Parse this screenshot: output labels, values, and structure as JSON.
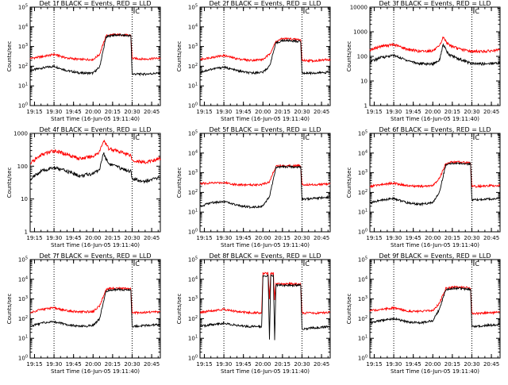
{
  "chart_data": [
    {
      "type": "line",
      "title": "Det 1f BLACK = Events, RED = LLD",
      "xlabel": "Start Time (16-Jun-05 19:11:40)",
      "ylabel": "Counts/sec",
      "yscale": "log",
      "ylim": [
        1,
        100000
      ],
      "y_tick_labels": [
        "10^0",
        "10^1",
        "10^2",
        "10^3",
        "10^4",
        "10^5"
      ],
      "x_tick_labels": [
        "19:15",
        "19:30",
        "19:45",
        "20:00",
        "20:15",
        "20:30",
        "20:45"
      ],
      "xlim": [
        "19:11:40",
        "20:51:40"
      ],
      "flag_label": "C",
      "flag_time": "20:31:30",
      "dotted_lines": [
        "19:30",
        "20:30"
      ],
      "series": [
        {
          "color": "#000000",
          "x": [
            "19:11:40",
            "19:20",
            "19:30",
            "19:40",
            "19:50",
            "20:00",
            "20:05",
            "20:10",
            "20:15",
            "20:20",
            "20:29",
            "20:30",
            "20:40",
            "20:51:40"
          ],
          "values": [
            60,
            80,
            100,
            60,
            45,
            45,
            90,
            3000,
            3800,
            3800,
            3500,
            40,
            40,
            45
          ]
        },
        {
          "color": "#ff0000",
          "x": [
            "19:11:40",
            "19:20",
            "19:30",
            "19:40",
            "19:50",
            "20:00",
            "20:05",
            "20:10",
            "20:15",
            "20:20",
            "20:29",
            "20:30",
            "20:40",
            "20:51:40"
          ],
          "values": [
            250,
            300,
            400,
            260,
            220,
            220,
            400,
            3500,
            4000,
            4000,
            3700,
            250,
            230,
            260
          ]
        }
      ]
    },
    {
      "type": "line",
      "title": "Det 2f BLACK = Events, RED = LLD",
      "xlabel": "Start Time (16-Jun-05 19:11:40)",
      "ylabel": "Counts/sec",
      "yscale": "log",
      "ylim": [
        1,
        100000
      ],
      "y_tick_labels": [
        "10^0",
        "10^1",
        "10^2",
        "10^3",
        "10^4",
        "10^5"
      ],
      "x_tick_labels": [
        "19:15",
        "19:30",
        "19:45",
        "20:00",
        "20:15",
        "20:30",
        "20:45"
      ],
      "xlim": [
        "19:11:40",
        "20:51:40"
      ],
      "flag_label": "C",
      "flag_time": "20:31:30",
      "dotted_lines": [
        "19:30",
        "20:30"
      ],
      "series": [
        {
          "color": "#000000",
          "x": [
            "19:11:40",
            "19:20",
            "19:30",
            "19:40",
            "19:50",
            "20:00",
            "20:05",
            "20:10",
            "20:15",
            "20:20",
            "20:29",
            "20:30",
            "20:40",
            "20:51:40"
          ],
          "values": [
            50,
            70,
            90,
            60,
            45,
            50,
            100,
            1500,
            2000,
            2000,
            1800,
            45,
            45,
            50
          ]
        },
        {
          "color": "#ff0000",
          "x": [
            "19:11:40",
            "19:20",
            "19:30",
            "19:40",
            "19:50",
            "20:00",
            "20:05",
            "20:10",
            "20:15",
            "20:20",
            "20:29",
            "20:30",
            "20:40",
            "20:51:40"
          ],
          "values": [
            220,
            280,
            350,
            240,
            200,
            220,
            400,
            1800,
            2500,
            2500,
            2200,
            200,
            190,
            220
          ]
        }
      ]
    },
    {
      "type": "line",
      "title": "Det 3f BLACK = Events, RED = LLD",
      "xlabel": "Start Time (16-Jun-05 19:11:40)",
      "ylabel": "Counts/sec",
      "yscale": "log",
      "ylim": [
        1,
        10000
      ],
      "y_tick_labels": [
        "1",
        "10",
        "100",
        "1000",
        "10000"
      ],
      "x_tick_labels": [
        "19:15",
        "19:30",
        "19:45",
        "20:00",
        "20:15",
        "20:30",
        "20:45"
      ],
      "xlim": [
        "19:11:40",
        "20:51:40"
      ],
      "flag_label": "C",
      "flag_time": "20:31:30",
      "dotted_lines": [
        "19:30",
        "20:30"
      ],
      "series": [
        {
          "color": "#000000",
          "x": [
            "19:11:40",
            "19:20",
            "19:30",
            "19:40",
            "19:50",
            "20:00",
            "20:05",
            "20:08",
            "20:12",
            "20:20",
            "20:30",
            "20:40",
            "20:51:40"
          ],
          "values": [
            60,
            90,
            110,
            70,
            50,
            50,
            70,
            300,
            120,
            80,
            50,
            50,
            55
          ]
        },
        {
          "color": "#ff0000",
          "x": [
            "19:11:40",
            "19:20",
            "19:30",
            "19:40",
            "19:50",
            "20:00",
            "20:05",
            "20:08",
            "20:12",
            "20:20",
            "20:30",
            "20:40",
            "20:51:40"
          ],
          "values": [
            180,
            260,
            300,
            200,
            160,
            170,
            250,
            600,
            300,
            200,
            160,
            160,
            180
          ]
        }
      ]
    },
    {
      "type": "line",
      "title": "Det 4f BLACK = Events, RED = LLD",
      "xlabel": "Start Time (16-Jun-05 19:11:40)",
      "ylabel": "Counts/sec",
      "yscale": "log",
      "ylim": [
        1,
        1000
      ],
      "y_tick_labels": [
        "1",
        "10",
        "100",
        "1000"
      ],
      "x_tick_labels": [
        "19:15",
        "19:30",
        "19:45",
        "20:00",
        "20:15",
        "20:30",
        "20:45"
      ],
      "xlim": [
        "19:11:40",
        "20:51:40"
      ],
      "flag_label": "C",
      "flag_time": "20:31:30",
      "dotted_lines": [
        "19:30",
        "20:30"
      ],
      "series": [
        {
          "color": "#000000",
          "x": [
            "19:11:40",
            "19:20",
            "19:30",
            "19:40",
            "19:50",
            "20:00",
            "20:05",
            "20:08",
            "20:12",
            "20:20",
            "20:29",
            "20:30",
            "20:40",
            "20:51:40"
          ],
          "values": [
            40,
            70,
            90,
            70,
            50,
            60,
            80,
            250,
            120,
            90,
            70,
            40,
            35,
            45
          ]
        },
        {
          "color": "#ff0000",
          "x": [
            "19:11:40",
            "19:20",
            "19:30",
            "19:40",
            "19:50",
            "20:00",
            "20:05",
            "20:08",
            "20:12",
            "20:20",
            "20:29",
            "20:30",
            "20:40",
            "20:51:40"
          ],
          "values": [
            120,
            220,
            300,
            230,
            170,
            200,
            280,
            600,
            350,
            280,
            220,
            150,
            130,
            170
          ]
        }
      ]
    },
    {
      "type": "line",
      "title": "Det 5f BLACK = Events, RED = LLD",
      "xlabel": "Start Time (16-Jun-05 19:11:40)",
      "ylabel": "Counts/sec",
      "yscale": "log",
      "ylim": [
        1,
        100000
      ],
      "y_tick_labels": [
        "10^0",
        "10^1",
        "10^2",
        "10^3",
        "10^4",
        "10^5"
      ],
      "x_tick_labels": [
        "19:15",
        "19:30",
        "19:45",
        "20:00",
        "20:15",
        "20:30",
        "20:45"
      ],
      "xlim": [
        "19:11:40",
        "20:51:40"
      ],
      "flag_label": "C",
      "flag_time": "20:31:30",
      "dotted_lines": [
        "19:30",
        "20:30"
      ],
      "series": [
        {
          "color": "#000000",
          "x": [
            "19:11:40",
            "19:20",
            "19:30",
            "19:40",
            "19:50",
            "20:00",
            "20:05",
            "20:10",
            "20:15",
            "20:20",
            "20:29",
            "20:30",
            "20:40",
            "20:51:40"
          ],
          "values": [
            20,
            30,
            35,
            22,
            18,
            20,
            60,
            1800,
            2000,
            2000,
            2000,
            45,
            50,
            60
          ]
        },
        {
          "color": "#ff0000",
          "x": [
            "19:11:40",
            "19:20",
            "19:30",
            "19:40",
            "19:50",
            "20:00",
            "20:05",
            "20:10",
            "20:15",
            "20:20",
            "20:29",
            "20:30",
            "20:40",
            "20:51:40"
          ],
          "values": [
            280,
            300,
            320,
            250,
            240,
            260,
            350,
            2200,
            2300,
            2300,
            2300,
            250,
            250,
            270
          ]
        }
      ]
    },
    {
      "type": "line",
      "title": "Det 6f BLACK = Events, RED = LLD",
      "xlabel": "Start Time (16-Jun-05 19:11:40)",
      "ylabel": "Counts/sec",
      "yscale": "log",
      "ylim": [
        1,
        100000
      ],
      "y_tick_labels": [
        "10^0",
        "10^1",
        "10^2",
        "10^3",
        "10^4",
        "10^5"
      ],
      "x_tick_labels": [
        "19:15",
        "19:30",
        "19:45",
        "20:00",
        "20:15",
        "20:30",
        "20:45"
      ],
      "xlim": [
        "19:11:40",
        "20:51:40"
      ],
      "flag_label": "C",
      "flag_time": "20:31:30",
      "dotted_lines": [
        "19:30",
        "20:30"
      ],
      "series": [
        {
          "color": "#000000",
          "x": [
            "19:11:40",
            "19:20",
            "19:30",
            "19:40",
            "19:50",
            "20:00",
            "20:05",
            "20:10",
            "20:15",
            "20:20",
            "20:29",
            "20:30",
            "20:40",
            "20:51:40"
          ],
          "values": [
            30,
            40,
            50,
            30,
            25,
            30,
            100,
            2500,
            3000,
            3000,
            2800,
            40,
            45,
            50
          ]
        },
        {
          "color": "#ff0000",
          "x": [
            "19:11:40",
            "19:20",
            "19:30",
            "19:40",
            "19:50",
            "20:00",
            "20:05",
            "20:10",
            "20:15",
            "20:20",
            "20:29",
            "20:30",
            "20:40",
            "20:51:40"
          ],
          "values": [
            200,
            250,
            300,
            220,
            200,
            220,
            500,
            3000,
            3500,
            3500,
            3200,
            200,
            210,
            230
          ]
        }
      ]
    },
    {
      "type": "line",
      "title": "Det 7f BLACK = Events, RED = LLD",
      "xlabel": "Start Time (16-Jun-05 19:11:40)",
      "ylabel": "Counts/sec",
      "yscale": "log",
      "ylim": [
        1,
        100000
      ],
      "y_tick_labels": [
        "10^0",
        "10^1",
        "10^2",
        "10^3",
        "10^4",
        "10^5"
      ],
      "x_tick_labels": [
        "19:15",
        "19:30",
        "19:45",
        "20:00",
        "20:15",
        "20:30",
        "20:45"
      ],
      "xlim": [
        "19:11:40",
        "20:51:40"
      ],
      "flag_label": "C",
      "flag_time": "20:31:30",
      "dotted_lines": [
        "19:30",
        "20:30"
      ],
      "series": [
        {
          "color": "#000000",
          "x": [
            "19:11:40",
            "19:20",
            "19:30",
            "19:40",
            "19:50",
            "20:00",
            "20:05",
            "20:10",
            "20:15",
            "20:20",
            "20:29",
            "20:30",
            "20:40",
            "20:51:40"
          ],
          "values": [
            40,
            60,
            70,
            50,
            40,
            45,
            100,
            2500,
            3000,
            3000,
            2800,
            40,
            45,
            50
          ]
        },
        {
          "color": "#ff0000",
          "x": [
            "19:11:40",
            "19:20",
            "19:30",
            "19:40",
            "19:50",
            "20:00",
            "20:05",
            "20:10",
            "20:15",
            "20:20",
            "20:29",
            "20:30",
            "20:40",
            "20:51:40"
          ],
          "values": [
            200,
            300,
            350,
            250,
            220,
            230,
            450,
            3000,
            3500,
            3500,
            3200,
            200,
            210,
            230
          ]
        }
      ]
    },
    {
      "type": "line",
      "title": "Det 8f BLACK = Events, RED = LLD",
      "xlabel": "Start Time (16-Jun-05 19:11:40)",
      "ylabel": "Counts/sec",
      "yscale": "log",
      "ylim": [
        1,
        100000
      ],
      "y_tick_labels": [
        "10^0",
        "10^1",
        "10^2",
        "10^3",
        "10^4",
        "10^5"
      ],
      "x_tick_labels": [
        "19:15",
        "19:30",
        "19:45",
        "20:00",
        "20:15",
        "20:30",
        "20:45"
      ],
      "xlim": [
        "19:11:40",
        "20:51:40"
      ],
      "flag_label": "C",
      "flag_time": "20:31:30",
      "dotted_lines": [
        "19:30",
        "20:30"
      ],
      "series": [
        {
          "color": "#000000",
          "x": [
            "19:11:40",
            "19:20",
            "19:30",
            "19:40",
            "19:50",
            "19:59",
            "20:00",
            "20:04",
            "20:05",
            "20:06",
            "20:08",
            "20:09",
            "20:10",
            "20:20",
            "20:29",
            "20:30",
            "20:40",
            "20:51:40"
          ],
          "values": [
            40,
            50,
            60,
            45,
            40,
            40,
            15000,
            15000,
            8,
            15000,
            15000,
            8,
            5000,
            5000,
            5000,
            30,
            35,
            40
          ]
        },
        {
          "color": "#ff0000",
          "x": [
            "19:11:40",
            "19:20",
            "19:30",
            "19:40",
            "19:50",
            "19:59",
            "20:00",
            "20:04",
            "20:05",
            "20:06",
            "20:08",
            "20:09",
            "20:10",
            "20:20",
            "20:29",
            "20:30",
            "20:40",
            "20:51:40"
          ],
          "values": [
            200,
            250,
            300,
            230,
            200,
            200,
            20000,
            20000,
            1000,
            20000,
            20000,
            1000,
            6000,
            6000,
            5500,
            200,
            190,
            210
          ]
        }
      ]
    },
    {
      "type": "line",
      "title": "Det 9f BLACK = Events, RED = LLD",
      "xlabel": "Start Time (16-Jun-05 19:11:40)",
      "ylabel": "Counts/sec",
      "yscale": "log",
      "ylim": [
        1,
        100000
      ],
      "y_tick_labels": [
        "10^0",
        "10^1",
        "10^2",
        "10^3",
        "10^4",
        "10^5"
      ],
      "x_tick_labels": [
        "19:15",
        "19:30",
        "19:45",
        "20:00",
        "20:15",
        "20:30",
        "20:45"
      ],
      "xlim": [
        "19:11:40",
        "20:51:40"
      ],
      "flag_label": "C",
      "flag_time": "20:31:30",
      "dotted_lines": [
        "19:30",
        "20:30"
      ],
      "series": [
        {
          "color": "#000000",
          "x": [
            "19:11:40",
            "19:20",
            "19:30",
            "19:40",
            "19:50",
            "20:00",
            "20:05",
            "20:10",
            "20:15",
            "20:20",
            "20:29",
            "20:30",
            "20:40",
            "20:51:40"
          ],
          "values": [
            60,
            80,
            100,
            70,
            60,
            80,
            300,
            3000,
            3500,
            3500,
            3000,
            40,
            45,
            50
          ]
        },
        {
          "color": "#ff0000",
          "x": [
            "19:11:40",
            "19:20",
            "19:30",
            "19:40",
            "19:50",
            "20:00",
            "20:05",
            "20:10",
            "20:15",
            "20:20",
            "20:29",
            "20:30",
            "20:40",
            "20:51:40"
          ],
          "values": [
            250,
            300,
            350,
            250,
            230,
            260,
            600,
            3500,
            4000,
            4000,
            3600,
            180,
            190,
            210
          ]
        }
      ]
    }
  ]
}
